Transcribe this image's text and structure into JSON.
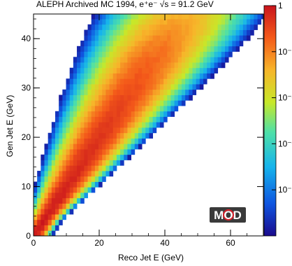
{
  "chart_data": {
    "type": "heatmap",
    "title": "ALEPH Archived MC 1994, e⁺e⁻ √s = 91.2 GeV",
    "xlabel": "Reco Jet E (GeV)",
    "ylabel": "Gen Jet E (GeV)",
    "xlim": [
      0,
      70
    ],
    "ylim": [
      0,
      45
    ],
    "x_ticks": [
      "0",
      "20",
      "40",
      "60"
    ],
    "y_ticks": [
      "0",
      "10",
      "20",
      "30",
      "40"
    ],
    "colorbar": {
      "scale": "log",
      "range": [
        1e-05,
        1
      ],
      "tick_labels": [
        "1",
        "10⁻¹",
        "10⁻²",
        "10⁻³",
        "10⁻⁴"
      ],
      "colors": [
        "#1a0a8c",
        "#0f55e0",
        "#16b4ec",
        "#4ee0a8",
        "#c7e829",
        "#f7b52a",
        "#f45a1a",
        "#c9141c"
      ]
    },
    "density_model": {
      "description_of_pattern": "diagonal band: reco ≈ gen energy, widening with energy",
      "bin_size_gev": 1.1,
      "mean_ratio": 1.0,
      "relative_width": 0.13,
      "peak_value_near_origin": 1.0
    },
    "logo": "MOD"
  }
}
